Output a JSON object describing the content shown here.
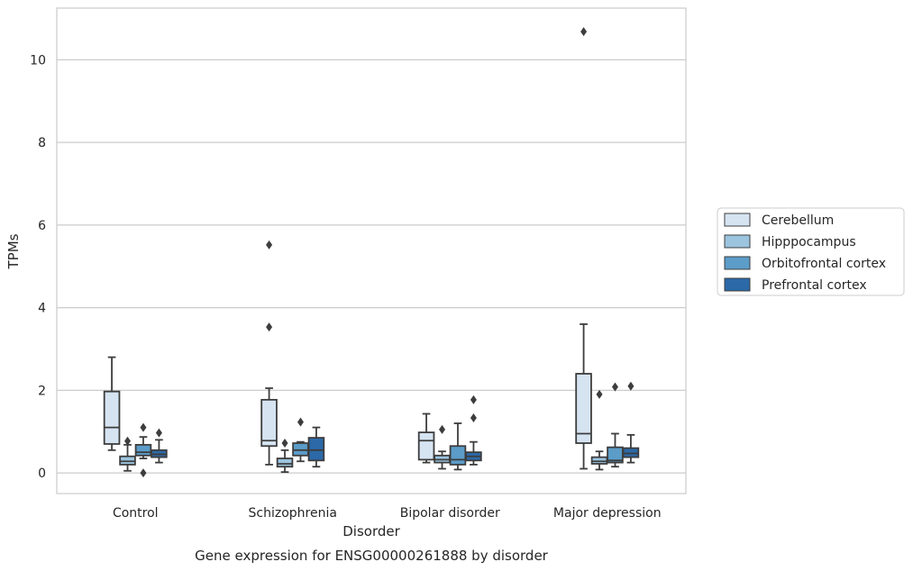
{
  "chart_data": {
    "type": "box",
    "title": "Gene expression for ENSG00000261888 by disorder",
    "xlabel": "Disorder",
    "ylabel": "TPMs",
    "ylim": [
      -0.5,
      11.25
    ],
    "yticks": [
      0,
      2,
      4,
      6,
      8,
      10
    ],
    "grid": true,
    "legend_position": "right",
    "categories": [
      "Control",
      "Schizophrenia",
      "Bipolar disorder",
      "Major depression"
    ],
    "series": [
      {
        "name": "Cerebellum",
        "color": "#d6e4f2",
        "boxes": [
          {
            "whisker_low": 0.55,
            "q1": 0.7,
            "median": 1.1,
            "q3": 1.97,
            "whisker_high": 2.8,
            "outliers": []
          },
          {
            "whisker_low": 0.2,
            "q1": 0.65,
            "median": 0.78,
            "q3": 1.77,
            "whisker_high": 2.05,
            "outliers": [
              3.53,
              5.52
            ]
          },
          {
            "whisker_low": 0.25,
            "q1": 0.32,
            "median": 0.78,
            "q3": 0.98,
            "whisker_high": 1.43,
            "outliers": []
          },
          {
            "whisker_low": 0.1,
            "q1": 0.72,
            "median": 0.95,
            "q3": 2.4,
            "whisker_high": 3.6,
            "outliers": [
              10.68
            ]
          }
        ]
      },
      {
        "name": "Hipppocampus",
        "color": "#9cc4de",
        "boxes": [
          {
            "whisker_low": 0.05,
            "q1": 0.2,
            "median": 0.28,
            "q3": 0.4,
            "whisker_high": 0.68,
            "outliers": [
              0.77
            ]
          },
          {
            "whisker_low": 0.02,
            "q1": 0.15,
            "median": 0.22,
            "q3": 0.35,
            "whisker_high": 0.55,
            "outliers": [
              0.72
            ]
          },
          {
            "whisker_low": 0.1,
            "q1": 0.25,
            "median": 0.32,
            "q3": 0.42,
            "whisker_high": 0.52,
            "outliers": [
              1.05
            ]
          },
          {
            "whisker_low": 0.08,
            "q1": 0.22,
            "median": 0.28,
            "q3": 0.38,
            "whisker_high": 0.52,
            "outliers": [
              1.9
            ]
          }
        ]
      },
      {
        "name": "Orbitofrontal cortex",
        "color": "#5b9cc8",
        "boxes": [
          {
            "whisker_low": 0.35,
            "q1": 0.42,
            "median": 0.5,
            "q3": 0.68,
            "whisker_high": 0.87,
            "outliers": [
              0.0,
              1.1
            ]
          },
          {
            "whisker_low": 0.28,
            "q1": 0.42,
            "median": 0.55,
            "q3": 0.72,
            "whisker_high": 0.75,
            "outliers": [
              1.23
            ]
          },
          {
            "whisker_low": 0.08,
            "q1": 0.2,
            "median": 0.32,
            "q3": 0.65,
            "whisker_high": 1.2,
            "outliers": []
          },
          {
            "whisker_low": 0.15,
            "q1": 0.25,
            "median": 0.3,
            "q3": 0.62,
            "whisker_high": 0.95,
            "outliers": [
              2.08
            ]
          }
        ]
      },
      {
        "name": "Prefrontal cortex",
        "color": "#2c69a8",
        "boxes": [
          {
            "whisker_low": 0.25,
            "q1": 0.38,
            "median": 0.45,
            "q3": 0.55,
            "whisker_high": 0.8,
            "outliers": [
              0.97
            ]
          },
          {
            "whisker_low": 0.15,
            "q1": 0.3,
            "median": 0.55,
            "q3": 0.85,
            "whisker_high": 1.1,
            "outliers": []
          },
          {
            "whisker_low": 0.2,
            "q1": 0.3,
            "median": 0.4,
            "q3": 0.5,
            "whisker_high": 0.75,
            "outliers": [
              1.33,
              1.77
            ]
          },
          {
            "whisker_low": 0.25,
            "q1": 0.38,
            "median": 0.47,
            "q3": 0.6,
            "whisker_high": 0.92,
            "outliers": [
              2.1
            ]
          }
        ]
      }
    ]
  }
}
